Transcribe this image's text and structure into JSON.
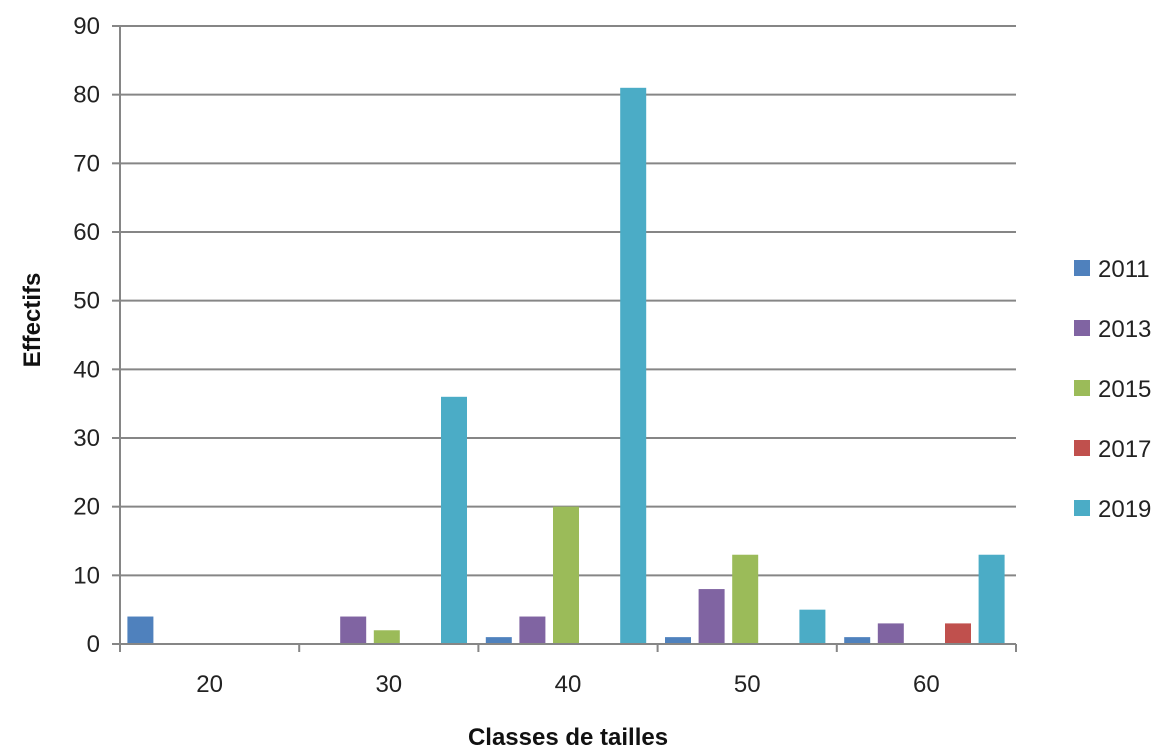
{
  "chart_data": {
    "type": "bar",
    "categories": [
      "20",
      "30",
      "40",
      "50",
      "60"
    ],
    "series": [
      {
        "name": "2011",
        "color": "#4F81BD",
        "values": [
          4,
          0,
          1,
          1,
          1
        ]
      },
      {
        "name": "2013",
        "color": "#8064A2",
        "values": [
          0,
          4,
          4,
          8,
          3
        ]
      },
      {
        "name": "2015",
        "color": "#9BBB59",
        "values": [
          0,
          2,
          20,
          13,
          0
        ]
      },
      {
        "name": "2017",
        "color": "#C0504D",
        "values": [
          0,
          0,
          0,
          0,
          3
        ]
      },
      {
        "name": "2019",
        "color": "#4BACC6",
        "values": [
          0,
          36,
          81,
          5,
          13
        ]
      }
    ],
    "xlabel": "Classes de tailles",
    "ylabel": "Effectifs",
    "ylim": [
      0,
      90
    ],
    "yticks": [
      0,
      10,
      20,
      30,
      40,
      50,
      60,
      70,
      80,
      90
    ],
    "grid": true,
    "legend_position": "right"
  }
}
